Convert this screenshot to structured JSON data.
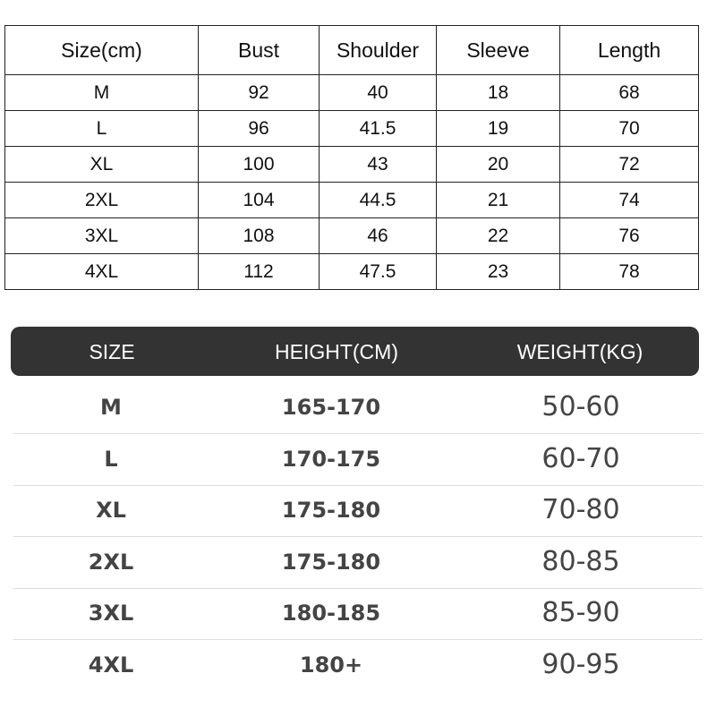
{
  "measurements": {
    "headers": [
      "Size(cm)",
      "Bust",
      "Shoulder",
      "Sleeve",
      "Length"
    ],
    "rows": [
      [
        "M",
        "92",
        "40",
        "18",
        "68"
      ],
      [
        "L",
        "96",
        "41.5",
        "19",
        "70"
      ],
      [
        "XL",
        "100",
        "43",
        "20",
        "72"
      ],
      [
        "2XL",
        "104",
        "44.5",
        "21",
        "74"
      ],
      [
        "3XL",
        "108",
        "46",
        "22",
        "76"
      ],
      [
        "4XL",
        "112",
        "47.5",
        "23",
        "78"
      ]
    ]
  },
  "recommendation": {
    "headers": [
      "SIZE",
      "HEIGHT(CM)",
      "WEIGHT(KG)"
    ],
    "rows": [
      [
        "M",
        "165-170",
        "50-60"
      ],
      [
        "L",
        "170-175",
        "60-70"
      ],
      [
        "XL",
        "175-180",
        "70-80"
      ],
      [
        "2XL",
        "175-180",
        "80-85"
      ],
      [
        "3XL",
        "180-185",
        "85-90"
      ],
      [
        "4XL",
        "180+",
        "90-95"
      ]
    ],
    "header_color": "#333333"
  }
}
